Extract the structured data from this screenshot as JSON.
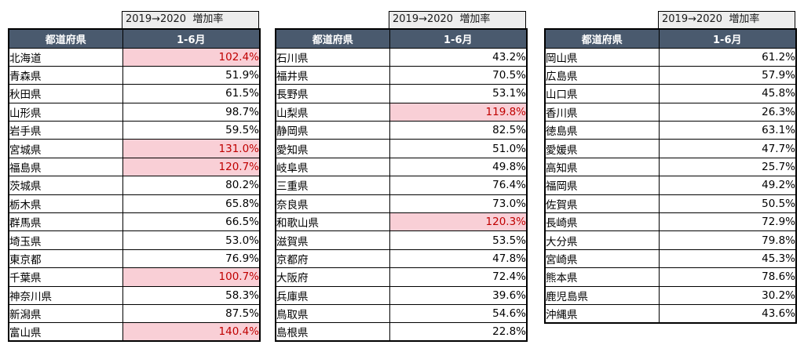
{
  "colors": {
    "header_bg": "#4a5a6e",
    "header_text": "#ffffff",
    "top_header_bg": "#ededed",
    "highlight_bg": "#f9cfd6",
    "highlight_text": "#c00000",
    "border": "#000000"
  },
  "chart_data": [
    {
      "type": "table",
      "title": "2019→2020  増加率",
      "columns": [
        "都道府県",
        "1-6月"
      ],
      "rows": [
        {
          "pref": "北海道",
          "value": "102.4%",
          "highlight": true
        },
        {
          "pref": "青森県",
          "value": "51.9%",
          "highlight": false
        },
        {
          "pref": "秋田県",
          "value": "61.5%",
          "highlight": false
        },
        {
          "pref": "山形県",
          "value": "98.7%",
          "highlight": false
        },
        {
          "pref": "岩手県",
          "value": "59.5%",
          "highlight": false
        },
        {
          "pref": "宮城県",
          "value": "131.0%",
          "highlight": true
        },
        {
          "pref": "福島県",
          "value": "120.7%",
          "highlight": true
        },
        {
          "pref": "茨城県",
          "value": "80.2%",
          "highlight": false
        },
        {
          "pref": "栃木県",
          "value": "65.8%",
          "highlight": false
        },
        {
          "pref": "群馬県",
          "value": "66.5%",
          "highlight": false
        },
        {
          "pref": "埼玉県",
          "value": "53.0%",
          "highlight": false
        },
        {
          "pref": "東京都",
          "value": "76.9%",
          "highlight": false
        },
        {
          "pref": "千葉県",
          "value": "100.7%",
          "highlight": true
        },
        {
          "pref": "神奈川県",
          "value": "58.3%",
          "highlight": false
        },
        {
          "pref": "新潟県",
          "value": "87.5%",
          "highlight": false
        },
        {
          "pref": "富山県",
          "value": "140.4%",
          "highlight": true
        }
      ]
    },
    {
      "type": "table",
      "title": "2019→2020  増加率",
      "columns": [
        "都道府県",
        "1-6月"
      ],
      "rows": [
        {
          "pref": "石川県",
          "value": "43.2%",
          "highlight": false
        },
        {
          "pref": "福井県",
          "value": "70.5%",
          "highlight": false
        },
        {
          "pref": "長野県",
          "value": "53.1%",
          "highlight": false
        },
        {
          "pref": "山梨県",
          "value": "119.8%",
          "highlight": true
        },
        {
          "pref": "静岡県",
          "value": "82.5%",
          "highlight": false
        },
        {
          "pref": "愛知県",
          "value": "51.0%",
          "highlight": false
        },
        {
          "pref": "岐阜県",
          "value": "49.8%",
          "highlight": false
        },
        {
          "pref": "三重県",
          "value": "76.4%",
          "highlight": false
        },
        {
          "pref": "奈良県",
          "value": "73.0%",
          "highlight": false
        },
        {
          "pref": "和歌山県",
          "value": "120.3%",
          "highlight": true
        },
        {
          "pref": "滋賀県",
          "value": "53.5%",
          "highlight": false
        },
        {
          "pref": "京都府",
          "value": "47.8%",
          "highlight": false
        },
        {
          "pref": "大阪府",
          "value": "72.4%",
          "highlight": false
        },
        {
          "pref": "兵庫県",
          "value": "39.6%",
          "highlight": false
        },
        {
          "pref": "鳥取県",
          "value": "54.6%",
          "highlight": false
        },
        {
          "pref": "島根県",
          "value": "22.8%",
          "highlight": false
        }
      ]
    },
    {
      "type": "table",
      "title": "2019→2020  増加率",
      "columns": [
        "都道府県",
        "1-6月"
      ],
      "rows": [
        {
          "pref": "岡山県",
          "value": "61.2%",
          "highlight": false
        },
        {
          "pref": "広島県",
          "value": "57.9%",
          "highlight": false
        },
        {
          "pref": "山口県",
          "value": "45.8%",
          "highlight": false
        },
        {
          "pref": "香川県",
          "value": "26.3%",
          "highlight": false
        },
        {
          "pref": "徳島県",
          "value": "63.1%",
          "highlight": false
        },
        {
          "pref": "愛媛県",
          "value": "47.7%",
          "highlight": false
        },
        {
          "pref": "高知県",
          "value": "25.7%",
          "highlight": false
        },
        {
          "pref": "福岡県",
          "value": "49.2%",
          "highlight": false
        },
        {
          "pref": "佐賀県",
          "value": "50.5%",
          "highlight": false
        },
        {
          "pref": "長崎県",
          "value": "72.9%",
          "highlight": false
        },
        {
          "pref": "大分県",
          "value": "79.8%",
          "highlight": false
        },
        {
          "pref": "宮崎県",
          "value": "45.3%",
          "highlight": false
        },
        {
          "pref": "熊本県",
          "value": "78.6%",
          "highlight": false
        },
        {
          "pref": "鹿児島県",
          "value": "30.2%",
          "highlight": false
        },
        {
          "pref": "沖縄県",
          "value": "43.6%",
          "highlight": false
        }
      ]
    }
  ]
}
